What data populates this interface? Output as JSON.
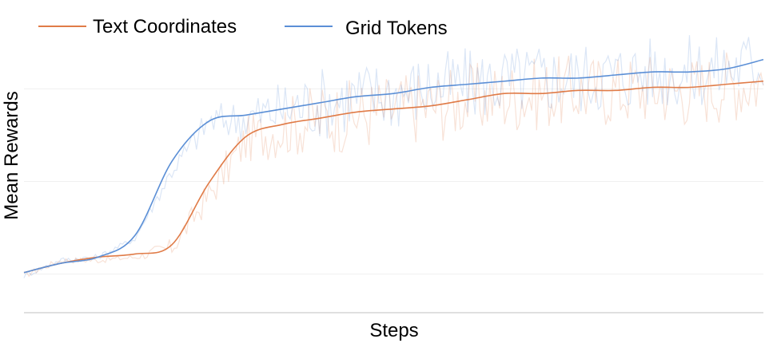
{
  "chart_data": {
    "type": "line",
    "title": "",
    "xlabel": "Steps",
    "ylabel": "Mean Rewards",
    "xlim": [
      0,
      1
    ],
    "ylim": [
      0.0,
      1.0
    ],
    "grid": true,
    "legend": "top-left",
    "x": [
      0.0,
      0.05,
      0.1,
      0.15,
      0.2,
      0.25,
      0.3,
      0.35,
      0.4,
      0.45,
      0.5,
      0.55,
      0.6,
      0.65,
      0.7,
      0.75,
      0.8,
      0.85,
      0.9,
      0.95,
      1.0
    ],
    "series": [
      {
        "name": "Text Coordinates",
        "color": "#e07b47",
        "smoothed": [
          0.13,
          0.16,
          0.18,
          0.19,
          0.22,
          0.42,
          0.57,
          0.61,
          0.63,
          0.65,
          0.66,
          0.67,
          0.69,
          0.71,
          0.71,
          0.72,
          0.72,
          0.73,
          0.73,
          0.74,
          0.75
        ],
        "raw": [
          0.12,
          0.17,
          0.17,
          0.18,
          0.21,
          0.38,
          0.56,
          0.6,
          0.63,
          0.64,
          0.66,
          0.67,
          0.69,
          0.7,
          0.71,
          0.72,
          0.72,
          0.73,
          0.72,
          0.74,
          0.75
        ]
      },
      {
        "name": "Grid Tokens",
        "color": "#5b8fd6",
        "smoothed": [
          0.13,
          0.16,
          0.18,
          0.25,
          0.49,
          0.62,
          0.64,
          0.66,
          0.68,
          0.7,
          0.71,
          0.73,
          0.74,
          0.75,
          0.76,
          0.76,
          0.77,
          0.78,
          0.78,
          0.79,
          0.82
        ],
        "raw": [
          0.12,
          0.17,
          0.18,
          0.24,
          0.46,
          0.62,
          0.63,
          0.66,
          0.68,
          0.7,
          0.71,
          0.73,
          0.74,
          0.75,
          0.76,
          0.76,
          0.77,
          0.78,
          0.78,
          0.79,
          0.82
        ]
      }
    ]
  }
}
